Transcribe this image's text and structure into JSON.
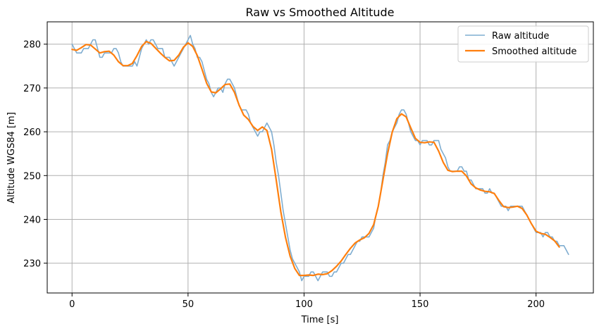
{
  "chart_data": {
    "type": "line",
    "title": "Raw vs Smoothed Altitude",
    "xlabel": "Time [s]",
    "ylabel": "Altitude WGS84 [m]",
    "xlim": [
      -10.7,
      224.7
    ],
    "ylim": [
      223.2,
      285.1
    ],
    "xticks": [
      0,
      50,
      100,
      150,
      200
    ],
    "yticks": [
      230,
      240,
      250,
      260,
      270,
      280
    ],
    "grid": true,
    "legend_position": "top-right",
    "series": [
      {
        "name": "Raw altitude",
        "color": "#7fadd0",
        "width": 1.6,
        "points": [
          [
            0,
            280
          ],
          [
            1,
            279
          ],
          [
            2,
            278
          ],
          [
            3,
            278
          ],
          [
            4,
            278
          ],
          [
            5,
            279
          ],
          [
            6,
            279
          ],
          [
            7,
            279
          ],
          [
            8,
            280
          ],
          [
            9,
            281
          ],
          [
            10,
            281
          ],
          [
            11,
            279
          ],
          [
            12,
            277
          ],
          [
            13,
            277
          ],
          [
            14,
            278
          ],
          [
            15,
            278
          ],
          [
            16,
            278
          ],
          [
            17,
            278
          ],
          [
            18,
            279
          ],
          [
            19,
            279
          ],
          [
            20,
            278
          ],
          [
            21,
            276
          ],
          [
            22,
            275
          ],
          [
            23,
            275
          ],
          [
            24,
            275
          ],
          [
            25,
            275
          ],
          [
            26,
            275
          ],
          [
            27,
            276
          ],
          [
            28,
            275
          ],
          [
            29,
            277
          ],
          [
            30,
            279
          ],
          [
            31,
            280
          ],
          [
            32,
            281
          ],
          [
            33,
            280
          ],
          [
            34,
            281
          ],
          [
            35,
            281
          ],
          [
            36,
            280
          ],
          [
            37,
            279
          ],
          [
            38,
            279
          ],
          [
            39,
            279
          ],
          [
            40,
            277
          ],
          [
            41,
            277
          ],
          [
            42,
            277
          ],
          [
            43,
            276
          ],
          [
            44,
            275
          ],
          [
            45,
            276
          ],
          [
            46,
            277
          ],
          [
            47,
            278
          ],
          [
            48,
            279
          ],
          [
            49,
            280
          ],
          [
            50,
            281
          ],
          [
            51,
            282
          ],
          [
            52,
            280
          ],
          [
            53,
            279
          ],
          [
            54,
            277
          ],
          [
            55,
            277
          ],
          [
            56,
            276
          ],
          [
            57,
            274
          ],
          [
            58,
            272
          ],
          [
            59,
            271
          ],
          [
            60,
            269
          ],
          [
            61,
            268
          ],
          [
            62,
            269
          ],
          [
            63,
            270
          ],
          [
            64,
            270
          ],
          [
            65,
            269
          ],
          [
            66,
            271
          ],
          [
            67,
            272
          ],
          [
            68,
            272
          ],
          [
            69,
            271
          ],
          [
            70,
            270
          ],
          [
            71,
            268
          ],
          [
            72,
            266
          ],
          [
            73,
            265
          ],
          [
            74,
            265
          ],
          [
            75,
            265
          ],
          [
            76,
            264
          ],
          [
            77,
            262
          ],
          [
            78,
            261
          ],
          [
            79,
            260
          ],
          [
            80,
            259
          ],
          [
            81,
            260
          ],
          [
            82,
            260
          ],
          [
            83,
            261
          ],
          [
            84,
            262
          ],
          [
            85,
            261
          ],
          [
            86,
            260
          ],
          [
            87,
            257
          ],
          [
            88,
            253
          ],
          [
            89,
            250
          ],
          [
            90,
            246
          ],
          [
            91,
            242
          ],
          [
            92,
            239
          ],
          [
            93,
            236
          ],
          [
            94,
            233
          ],
          [
            95,
            231
          ],
          [
            96,
            230
          ],
          [
            97,
            229
          ],
          [
            98,
            228
          ],
          [
            99,
            226
          ],
          [
            100,
            227
          ],
          [
            101,
            227
          ],
          [
            102,
            227
          ],
          [
            103,
            228
          ],
          [
            104,
            228
          ],
          [
            105,
            227
          ],
          [
            106,
            226
          ],
          [
            107,
            227
          ],
          [
            108,
            228
          ],
          [
            109,
            228
          ],
          [
            110,
            228
          ],
          [
            111,
            227
          ],
          [
            112,
            227
          ],
          [
            113,
            228
          ],
          [
            114,
            228
          ],
          [
            115,
            229
          ],
          [
            116,
            230
          ],
          [
            117,
            230
          ],
          [
            118,
            231
          ],
          [
            119,
            232
          ],
          [
            120,
            232
          ],
          [
            121,
            233
          ],
          [
            122,
            234
          ],
          [
            123,
            235
          ],
          [
            124,
            235
          ],
          [
            125,
            236
          ],
          [
            126,
            236
          ],
          [
            127,
            236
          ],
          [
            128,
            236
          ],
          [
            129,
            237
          ],
          [
            130,
            238
          ],
          [
            131,
            241
          ],
          [
            132,
            243
          ],
          [
            133,
            246
          ],
          [
            134,
            250
          ],
          [
            135,
            253
          ],
          [
            136,
            257
          ],
          [
            137,
            258
          ],
          [
            138,
            260
          ],
          [
            139,
            261
          ],
          [
            140,
            262
          ],
          [
            141,
            264
          ],
          [
            142,
            265
          ],
          [
            143,
            265
          ],
          [
            144,
            264
          ],
          [
            145,
            262
          ],
          [
            146,
            260
          ],
          [
            147,
            259
          ],
          [
            148,
            258
          ],
          [
            149,
            258
          ],
          [
            150,
            257
          ],
          [
            151,
            258
          ],
          [
            152,
            258
          ],
          [
            153,
            258
          ],
          [
            154,
            257
          ],
          [
            155,
            257
          ],
          [
            156,
            258
          ],
          [
            157,
            258
          ],
          [
            158,
            258
          ],
          [
            159,
            256
          ],
          [
            160,
            255
          ],
          [
            161,
            254
          ],
          [
            162,
            252
          ],
          [
            163,
            251
          ],
          [
            164,
            251
          ],
          [
            165,
            251
          ],
          [
            166,
            251
          ],
          [
            167,
            252
          ],
          [
            168,
            252
          ],
          [
            169,
            251
          ],
          [
            170,
            251
          ],
          [
            171,
            249
          ],
          [
            172,
            249
          ],
          [
            173,
            248
          ],
          [
            174,
            247
          ],
          [
            175,
            247
          ],
          [
            176,
            247
          ],
          [
            177,
            247
          ],
          [
            178,
            246
          ],
          [
            179,
            246
          ],
          [
            180,
            247
          ],
          [
            181,
            246
          ],
          [
            182,
            246
          ],
          [
            183,
            245
          ],
          [
            184,
            244
          ],
          [
            185,
            243
          ],
          [
            186,
            243
          ],
          [
            187,
            243
          ],
          [
            188,
            242
          ],
          [
            189,
            243
          ],
          [
            190,
            243
          ],
          [
            191,
            243
          ],
          [
            192,
            243
          ],
          [
            193,
            243
          ],
          [
            194,
            243
          ],
          [
            195,
            242
          ],
          [
            196,
            241
          ],
          [
            197,
            240
          ],
          [
            198,
            239
          ],
          [
            199,
            238
          ],
          [
            200,
            237
          ],
          [
            201,
            237
          ],
          [
            202,
            237
          ],
          [
            203,
            236
          ],
          [
            204,
            237
          ],
          [
            205,
            237
          ],
          [
            206,
            236
          ],
          [
            207,
            236
          ],
          [
            208,
            235
          ],
          [
            209,
            235
          ],
          [
            210,
            234
          ],
          [
            211,
            234
          ],
          [
            212,
            234
          ],
          [
            213,
            233
          ],
          [
            214,
            232
          ]
        ]
      },
      {
        "name": "Smoothed altitude",
        "color": "#ff7f0e",
        "width": 2.2,
        "points": [
          [
            0,
            278.8
          ],
          [
            2,
            278.6
          ],
          [
            4,
            279.2
          ],
          [
            6,
            279.9
          ],
          [
            8,
            279.8
          ],
          [
            10,
            278.9
          ],
          [
            12,
            278.0
          ],
          [
            14,
            278.3
          ],
          [
            16,
            278.4
          ],
          [
            18,
            277.5
          ],
          [
            20,
            276.0
          ],
          [
            22,
            275.1
          ],
          [
            24,
            275.1
          ],
          [
            26,
            275.6
          ],
          [
            28,
            277.4
          ],
          [
            30,
            279.5
          ],
          [
            32,
            280.6
          ],
          [
            34,
            280.2
          ],
          [
            36,
            279.1
          ],
          [
            38,
            278.0
          ],
          [
            40,
            277.0
          ],
          [
            42,
            276.2
          ],
          [
            44,
            276.3
          ],
          [
            46,
            277.5
          ],
          [
            48,
            279.3
          ],
          [
            50,
            280.3
          ],
          [
            52,
            279.5
          ],
          [
            54,
            277.4
          ],
          [
            56,
            274.3
          ],
          [
            58,
            271.1
          ],
          [
            60,
            269.1
          ],
          [
            62,
            268.9
          ],
          [
            64,
            269.8
          ],
          [
            66,
            270.8
          ],
          [
            68,
            270.9
          ],
          [
            70,
            269.0
          ],
          [
            72,
            266.1
          ],
          [
            74,
            263.8
          ],
          [
            76,
            262.8
          ],
          [
            78,
            261.2
          ],
          [
            80,
            260.3
          ],
          [
            82,
            261.1
          ],
          [
            84,
            260.3
          ],
          [
            86,
            256.0
          ],
          [
            88,
            249.0
          ],
          [
            90,
            241.7
          ],
          [
            92,
            235.9
          ],
          [
            94,
            231.6
          ],
          [
            96,
            228.8
          ],
          [
            98,
            227.2
          ],
          [
            100,
            227.2
          ],
          [
            102,
            227.3
          ],
          [
            104,
            227.2
          ],
          [
            106,
            227.5
          ],
          [
            108,
            227.4
          ],
          [
            110,
            227.6
          ],
          [
            112,
            228.3
          ],
          [
            114,
            229.3
          ],
          [
            116,
            230.5
          ],
          [
            118,
            232.0
          ],
          [
            120,
            233.4
          ],
          [
            122,
            234.6
          ],
          [
            124,
            235.3
          ],
          [
            126,
            235.8
          ],
          [
            128,
            236.8
          ],
          [
            130,
            238.8
          ],
          [
            132,
            243.0
          ],
          [
            134,
            249.0
          ],
          [
            136,
            255.0
          ],
          [
            138,
            259.9
          ],
          [
            140,
            263.0
          ],
          [
            142,
            264.1
          ],
          [
            144,
            263.4
          ],
          [
            146,
            260.9
          ],
          [
            148,
            258.5
          ],
          [
            150,
            257.6
          ],
          [
            152,
            257.5
          ],
          [
            154,
            257.7
          ],
          [
            156,
            257.6
          ],
          [
            158,
            255.6
          ],
          [
            160,
            253.0
          ],
          [
            162,
            251.2
          ],
          [
            164,
            250.9
          ],
          [
            166,
            251.0
          ],
          [
            168,
            251.0
          ],
          [
            170,
            249.9
          ],
          [
            172,
            248.1
          ],
          [
            174,
            247.2
          ],
          [
            176,
            246.7
          ],
          [
            178,
            246.4
          ],
          [
            180,
            246.3
          ],
          [
            182,
            245.9
          ],
          [
            184,
            244.3
          ],
          [
            186,
            242.9
          ],
          [
            188,
            242.7
          ],
          [
            190,
            242.8
          ],
          [
            192,
            243.0
          ],
          [
            194,
            242.5
          ],
          [
            196,
            241.0
          ],
          [
            198,
            239.0
          ],
          [
            200,
            237.3
          ],
          [
            202,
            236.8
          ],
          [
            204,
            236.6
          ],
          [
            206,
            235.9
          ],
          [
            208,
            235.1
          ],
          [
            210,
            233.7
          ]
        ]
      }
    ]
  }
}
